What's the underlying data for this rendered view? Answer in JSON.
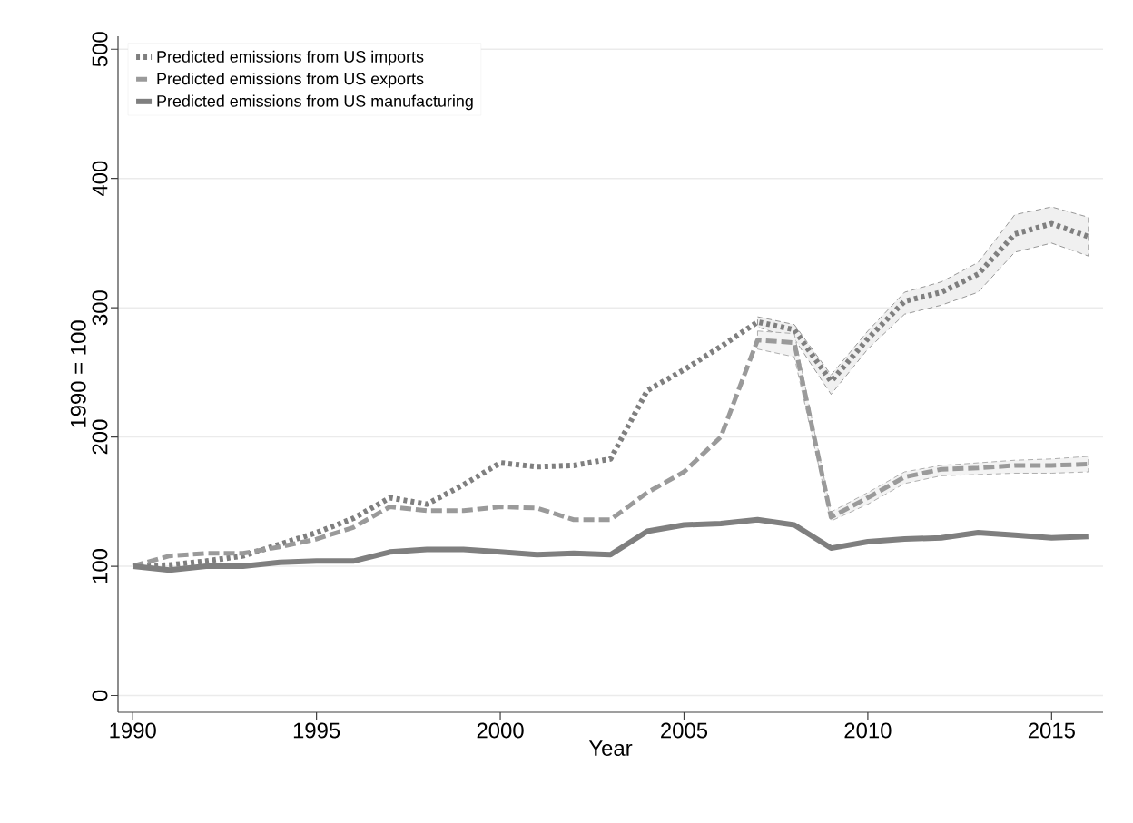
{
  "chart_data": {
    "type": "line",
    "xlabel": "Year",
    "ylabel": "1990 = 100",
    "x": [
      1990,
      1991,
      1992,
      1993,
      1994,
      1995,
      1996,
      1997,
      1998,
      1999,
      2000,
      2001,
      2002,
      2003,
      2004,
      2005,
      2006,
      2007,
      2008,
      2009,
      2010,
      2011,
      2012,
      2013,
      2014,
      2015,
      2016
    ],
    "series": [
      {
        "name": "Predicted emissions from US imports",
        "color": "#7f7f7f",
        "line_style": "dotted",
        "values": [
          100,
          101,
          104,
          108,
          117,
          126,
          137,
          153,
          148,
          163,
          180,
          177,
          178,
          183,
          236,
          252,
          270,
          289,
          283,
          243,
          276,
          305,
          312,
          326,
          357,
          365,
          355
        ],
        "lower": [
          null,
          null,
          null,
          null,
          null,
          null,
          null,
          null,
          null,
          null,
          null,
          null,
          null,
          null,
          null,
          null,
          null,
          285,
          276,
          233,
          268,
          295,
          302,
          312,
          343,
          350,
          340
        ],
        "upper": [
          null,
          null,
          null,
          null,
          null,
          null,
          null,
          null,
          null,
          null,
          null,
          null,
          null,
          null,
          null,
          null,
          null,
          293,
          287,
          248,
          282,
          312,
          320,
          335,
          372,
          378,
          370
        ]
      },
      {
        "name": "Predicted emissions from US exports",
        "color": "#9a9a9a",
        "line_style": "dashed",
        "values": [
          100,
          108,
          110,
          110,
          115,
          121,
          130,
          146,
          143,
          143,
          146,
          145,
          136,
          136,
          157,
          173,
          200,
          275,
          273,
          138,
          153,
          169,
          175,
          176,
          178,
          178,
          179
        ],
        "lower": [
          null,
          null,
          null,
          null,
          null,
          null,
          null,
          null,
          null,
          null,
          null,
          null,
          null,
          null,
          null,
          null,
          null,
          268,
          262,
          135,
          148,
          164,
          170,
          171,
          172,
          172,
          173
        ],
        "upper": [
          null,
          null,
          null,
          null,
          null,
          null,
          null,
          null,
          null,
          null,
          null,
          null,
          null,
          null,
          null,
          null,
          null,
          282,
          280,
          142,
          157,
          173,
          178,
          180,
          182,
          183,
          185
        ]
      },
      {
        "name": "Predicted emissions from US manufacturing",
        "color": "#7f7f7f",
        "line_style": "solid",
        "values": [
          100,
          97,
          100,
          100,
          103,
          104,
          104,
          111,
          113,
          113,
          111,
          109,
          110,
          109,
          127,
          132,
          133,
          136,
          132,
          114,
          119,
          121,
          122,
          126,
          124,
          122,
          123
        ]
      }
    ],
    "xlim": [
      1989.6,
      2016.4
    ],
    "ylim": [
      -13,
      510
    ],
    "xticks": [
      1990,
      1995,
      2000,
      2005,
      2010,
      2015
    ],
    "yticks": [
      0,
      100,
      200,
      300,
      400,
      500
    ],
    "grid": "y",
    "legend": "top left",
    "marker": "none"
  }
}
